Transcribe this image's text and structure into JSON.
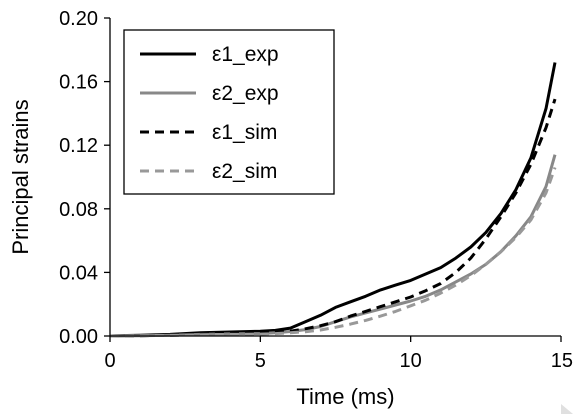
{
  "chart_data": {
    "type": "line",
    "title": "",
    "xlabel": "Time (ms)",
    "ylabel": "Principal strains",
    "xlim": [
      0,
      15
    ],
    "ylim": [
      0,
      0.2
    ],
    "xticks": [
      0,
      5,
      10,
      15
    ],
    "yticks": [
      0,
      0.04,
      0.08,
      0.12,
      0.16,
      0.2
    ],
    "xtick_labels": [
      "0",
      "5",
      "10",
      "15"
    ],
    "ytick_labels": [
      "0.00",
      "0.04",
      "0.08",
      "0.12",
      "0.16",
      "0.20"
    ],
    "grid": false,
    "legend_position": "top-left",
    "series": [
      {
        "name": "ε1_exp",
        "color": "#000000",
        "dash": "solid",
        "x": [
          0,
          1,
          2,
          3,
          4,
          5,
          5.5,
          6,
          6.5,
          7,
          7.5,
          8,
          8.5,
          9,
          9.5,
          10,
          10.5,
          11,
          11.5,
          12,
          12.5,
          13,
          13.5,
          14,
          14.5,
          14.8
        ],
        "y": [
          0,
          0.0005,
          0.001,
          0.002,
          0.0025,
          0.003,
          0.0035,
          0.005,
          0.009,
          0.013,
          0.018,
          0.0215,
          0.025,
          0.029,
          0.032,
          0.035,
          0.039,
          0.043,
          0.049,
          0.056,
          0.065,
          0.077,
          0.092,
          0.112,
          0.143,
          0.172
        ]
      },
      {
        "name": "ε2_exp",
        "color": "#888888",
        "dash": "solid",
        "x": [
          0,
          1,
          2,
          3,
          4,
          5,
          5.5,
          6,
          6.5,
          7,
          7.5,
          8,
          8.5,
          9,
          9.5,
          10,
          10.5,
          11,
          11.5,
          12,
          12.5,
          13,
          13.5,
          14,
          14.5,
          14.8
        ],
        "y": [
          0,
          0.0002,
          0.0005,
          0.001,
          0.0013,
          0.0015,
          0.002,
          0.0028,
          0.004,
          0.006,
          0.009,
          0.012,
          0.0145,
          0.017,
          0.0195,
          0.022,
          0.025,
          0.029,
          0.034,
          0.039,
          0.045,
          0.053,
          0.063,
          0.075,
          0.094,
          0.114
        ]
      },
      {
        "name": "ε1_sim",
        "color": "#000000",
        "dash": "dashed",
        "x": [
          0,
          1,
          2,
          3,
          4,
          5,
          5.5,
          6,
          6.5,
          7,
          7.5,
          8,
          8.5,
          9,
          9.5,
          10,
          10.5,
          11,
          11.5,
          12,
          12.5,
          13,
          13.5,
          14,
          14.5,
          14.8
        ],
        "y": [
          0,
          0.0002,
          0.0005,
          0.001,
          0.0015,
          0.002,
          0.0025,
          0.003,
          0.0045,
          0.0065,
          0.009,
          0.0125,
          0.0155,
          0.0185,
          0.0215,
          0.0245,
          0.0285,
          0.033,
          0.04,
          0.049,
          0.061,
          0.075,
          0.09,
          0.108,
          0.131,
          0.149
        ]
      },
      {
        "name": "ε2_sim",
        "color": "#999999",
        "dash": "dashed",
        "x": [
          0,
          1,
          2,
          3,
          4,
          5,
          5.5,
          6,
          6.5,
          7,
          7.5,
          8,
          8.5,
          9,
          9.5,
          10,
          10.5,
          11,
          11.5,
          12,
          12.5,
          13,
          13.5,
          14,
          14.5,
          14.8
        ],
        "y": [
          0,
          0.0002,
          0.0004,
          0.0008,
          0.001,
          0.0012,
          0.0015,
          0.002,
          0.0027,
          0.0038,
          0.0055,
          0.0075,
          0.0098,
          0.0125,
          0.0155,
          0.019,
          0.0225,
          0.027,
          0.032,
          0.038,
          0.045,
          0.053,
          0.062,
          0.073,
          0.09,
          0.106
        ]
      }
    ]
  }
}
